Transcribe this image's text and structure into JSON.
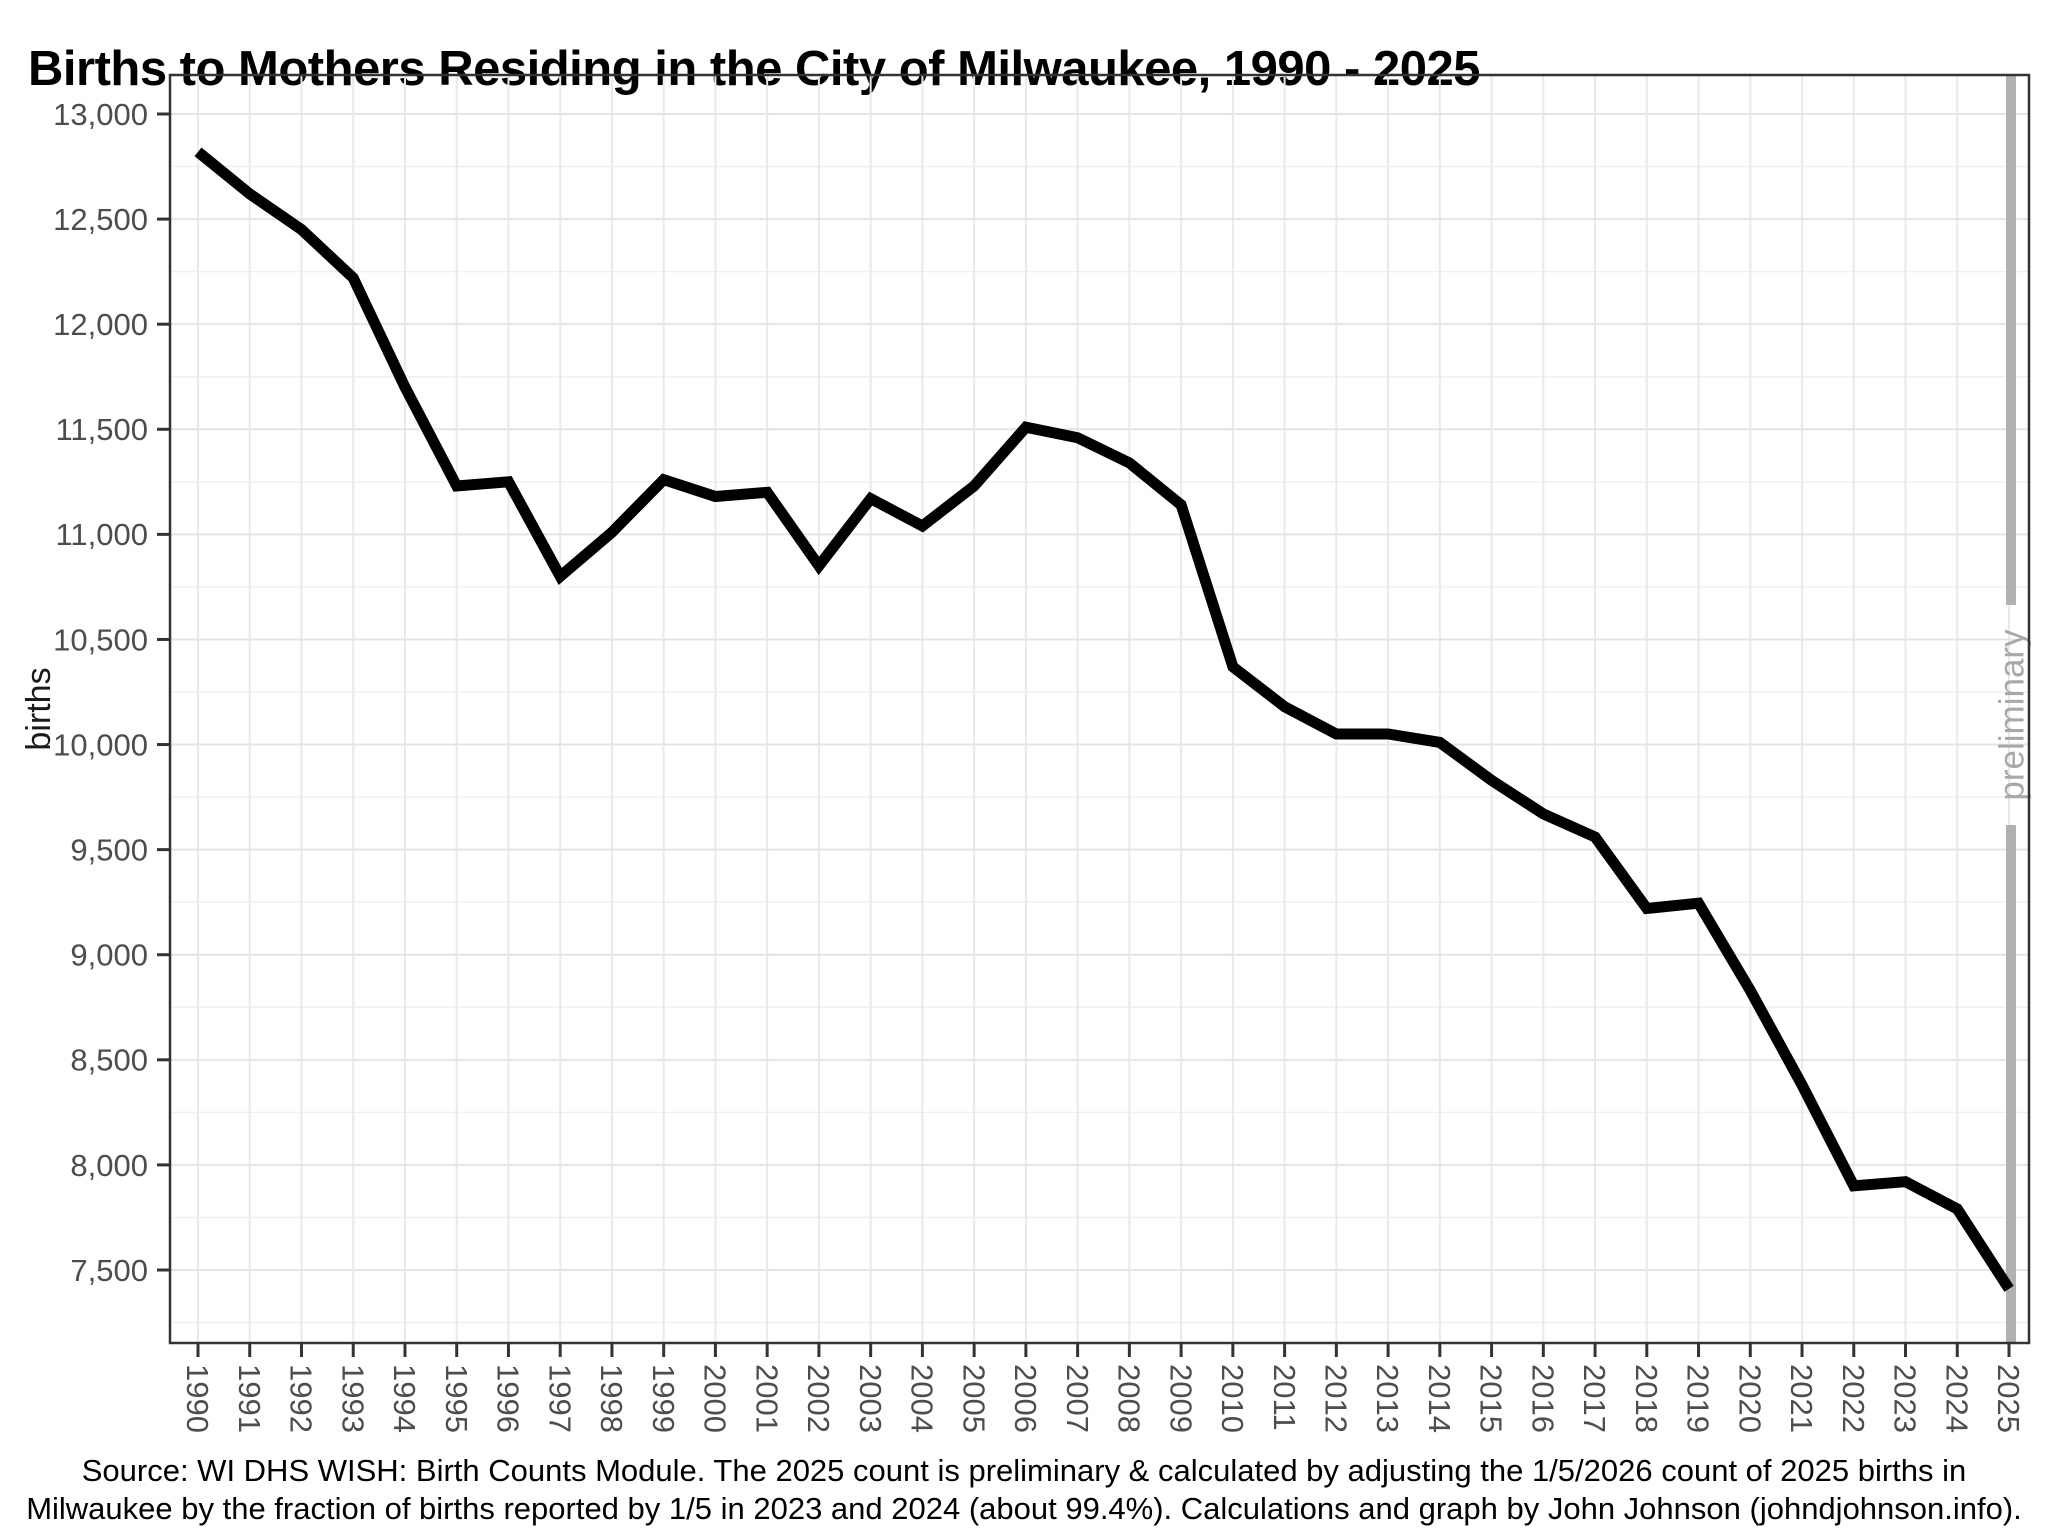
{
  "title": "Births to Mothers Residing in the City of Milwaukee, 1990 - 2025",
  "y_axis": {
    "label": "births",
    "tick_labels": [
      "13,000",
      "12,500",
      "12,000",
      "11,500",
      "11,000",
      "10,500",
      "10,000",
      "9,500",
      "9,000",
      "8,500",
      "8,000",
      "7,500"
    ],
    "tick_values": [
      13000,
      12500,
      12000,
      11500,
      11000,
      10500,
      10000,
      9500,
      9000,
      8500,
      8000,
      7500
    ],
    "minor_step": 250
  },
  "x_axis": {
    "tick_labels": [
      "1990",
      "1991",
      "1992",
      "1993",
      "1994",
      "1995",
      "1996",
      "1997",
      "1998",
      "1999",
      "2000",
      "2001",
      "2002",
      "2003",
      "2004",
      "2005",
      "2006",
      "2007",
      "2008",
      "2009",
      "2010",
      "2011",
      "2012",
      "2013",
      "2014",
      "2015",
      "2016",
      "2017",
      "2018",
      "2019",
      "2020",
      "2021",
      "2022",
      "2023",
      "2024",
      "2025"
    ]
  },
  "annotation": {
    "label": "preliminary",
    "year": 2025
  },
  "caption_lines": [
    "Source: WI DHS WISH: Birth Counts Module. The 2025 count is preliminary & calculated by adjusting the 1/5/2026 count of 2025 births in",
    "Milwaukee by the fraction of births reported by 1/5 in 2023 and 2024 (about 99.4%). Calculations and graph by John Johnson (johndjohnson.info)."
  ],
  "colors": {
    "line": "#000000",
    "band": "#b1b1b1",
    "annotation_text": "#a8a8a8",
    "tick_label": "#4d4d4d",
    "axis": "#333333",
    "grid_major": "#e4e4e4",
    "grid_minor": "#f0f0f0",
    "grid_vertical": "#e9e9e9",
    "background": "#ffffff"
  },
  "chart_data": {
    "type": "line",
    "title": "Births to Mothers Residing in the City of Milwaukee, 1990 - 2025",
    "xlabel": "",
    "ylabel": "births",
    "x": [
      1990,
      1991,
      1992,
      1993,
      1994,
      1995,
      1996,
      1997,
      1998,
      1999,
      2000,
      2001,
      2002,
      2003,
      2004,
      2005,
      2006,
      2007,
      2008,
      2009,
      2010,
      2011,
      2012,
      2013,
      2014,
      2015,
      2016,
      2017,
      2018,
      2019,
      2020,
      2021,
      2022,
      2023,
      2024,
      2025
    ],
    "series": [
      {
        "name": "births",
        "values": [
          12820,
          12620,
          12450,
          12220,
          11700,
          11230,
          11250,
          10800,
          11010,
          11260,
          11180,
          11200,
          10850,
          11170,
          11040,
          11230,
          11510,
          11460,
          11340,
          11140,
          10370,
          10180,
          10050,
          10050,
          10010,
          9830,
          9670,
          9560,
          9220,
          9245,
          8830,
          8380,
          7900,
          7920,
          7790,
          7410
        ]
      }
    ],
    "ylim": [
      7250,
      13100
    ],
    "xlim": [
      1989.5,
      2025.4
    ],
    "grid": true,
    "legend": "none",
    "notes": "thick black line; vertical gray band with rotated 'preliminary' text at x=2025"
  }
}
